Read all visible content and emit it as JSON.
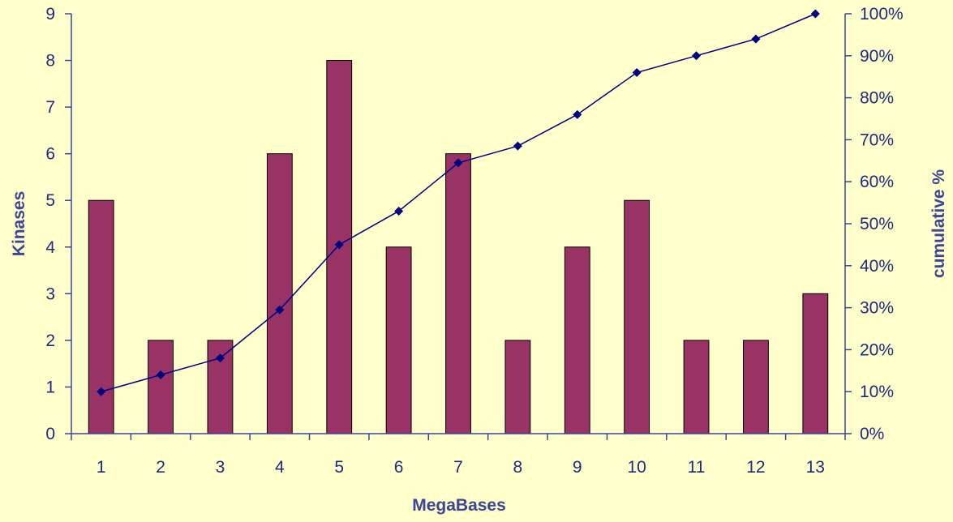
{
  "chart_data": {
    "type": "bar",
    "title": "",
    "xlabel": "MegaBases",
    "ylabel": "Kinases",
    "y2label": "cumulative %",
    "categories": [
      "1",
      "2",
      "3",
      "4",
      "5",
      "6",
      "7",
      "8",
      "9",
      "10",
      "11",
      "12",
      "13"
    ],
    "series": [
      {
        "values": [
          5,
          2,
          2,
          6,
          8,
          4,
          6,
          2,
          4,
          5,
          2,
          2,
          3
        ],
        "type": "bar",
        "axis": "left"
      },
      {
        "values": [
          10,
          14,
          18,
          29.5,
          45,
          53,
          64.5,
          68.5,
          76,
          86,
          90,
          94,
          100
        ],
        "type": "line",
        "axis": "right"
      }
    ],
    "ylim": [
      0,
      9
    ],
    "y_ticks": [
      "0",
      "1",
      "2",
      "3",
      "4",
      "5",
      "6",
      "7",
      "8",
      "9"
    ],
    "y2lim": [
      0,
      100
    ],
    "y2_ticks": [
      "0%",
      "10%",
      "20%",
      "30%",
      "40%",
      "50%",
      "60%",
      "70%",
      "80%",
      "90%",
      "100%"
    ],
    "grid": false,
    "legend": "none",
    "colors": {
      "background": "#FFFFCC",
      "bar": "#993366",
      "line": "#000080",
      "axis": "#3C4696",
      "text": "#1F2A80"
    }
  }
}
